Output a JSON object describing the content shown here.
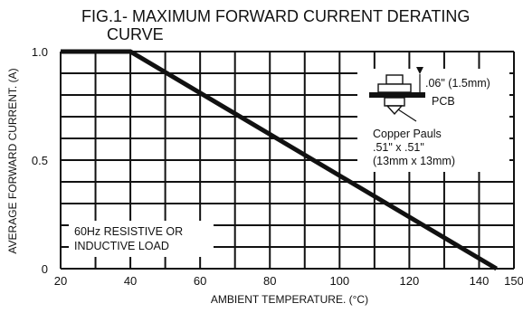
{
  "chart_data": {
    "type": "line",
    "title_lines": [
      "FIG.1-  MAXIMUM FORWARD CURRENT DERATING",
      "CURVE"
    ],
    "xlabel": "AMBIENT TEMPERATURE. (°C)",
    "ylabel": "AVERAGE FORWARD CURRENT. (A)",
    "xlim": [
      20,
      150
    ],
    "ylim": [
      0,
      1.0
    ],
    "x_ticks": [
      20,
      40,
      60,
      80,
      100,
      120,
      140,
      150
    ],
    "y_ticks": [
      0,
      0.5,
      1.0
    ],
    "x_tick_labels": [
      "20",
      "40",
      "60",
      "80",
      "100",
      "120",
      "140",
      "150"
    ],
    "y_tick_labels": [
      "0",
      "0.5",
      "1.0"
    ],
    "grid": true,
    "series": [
      {
        "x": [
          20,
          40,
          145
        ],
        "y": [
          1.0,
          1.0,
          0.0
        ]
      }
    ],
    "annotations": {
      "load_note": [
        "60Hz RESISTIVE OR",
        "INDUCTIVE LOAD"
      ],
      "pcb_thickness": ".06\" (1.5mm)",
      "pcb_label": "PCB",
      "pad_lines": [
        "Copper Pauls",
        ".51\" x .51\"",
        "(13mm x 13mm)"
      ]
    }
  }
}
